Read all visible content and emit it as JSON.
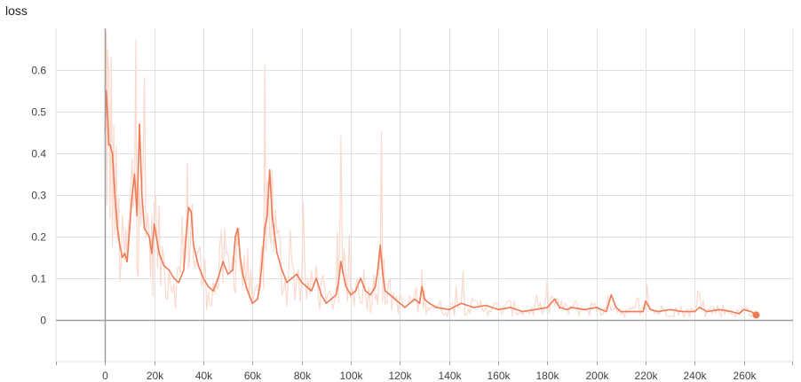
{
  "chart_data": {
    "type": "line",
    "title": "loss",
    "xlabel": "",
    "ylabel": "",
    "xlim": [
      -20000,
      280000
    ],
    "ylim": [
      -0.1,
      0.7
    ],
    "xticks": [
      0,
      20000,
      40000,
      60000,
      80000,
      100000,
      120000,
      140000,
      160000,
      180000,
      200000,
      220000,
      240000,
      260000
    ],
    "xtick_labels": [
      "0",
      "20k",
      "40k",
      "60k",
      "80k",
      "100k",
      "120k",
      "140k",
      "160k",
      "180k",
      "200k",
      "220k",
      "240k",
      "260k"
    ],
    "yticks": [
      0,
      0.1,
      0.2,
      0.3,
      0.4,
      0.5,
      0.6
    ],
    "ytick_labels": [
      "0",
      "0.1",
      "0.2",
      "0.3",
      "0.4",
      "0.5",
      "0.6"
    ],
    "grid": true,
    "colors": {
      "smoothed": "#ef7a56",
      "raw": "#fbd9cd",
      "grid": "#e0e0e0",
      "axis": "#9e9e9e"
    },
    "series": [
      {
        "role": "smoothed",
        "x": [
          0,
          500,
          1000,
          1500,
          2000,
          3000,
          4000,
          5000,
          6000,
          7000,
          8000,
          9000,
          10000,
          11000,
          12000,
          13000,
          14000,
          15000,
          16000,
          18000,
          19000,
          20000,
          22000,
          24000,
          26000,
          28000,
          30000,
          32000,
          33000,
          34000,
          35000,
          36000,
          38000,
          40000,
          42000,
          44000,
          46000,
          48000,
          50000,
          52000,
          53000,
          54000,
          55000,
          56000,
          58000,
          60000,
          62000,
          63000,
          64000,
          65000,
          66000,
          67000,
          68000,
          70000,
          72000,
          74000,
          76000,
          78000,
          80000,
          82000,
          84000,
          86000,
          88000,
          90000,
          92000,
          94000,
          95000,
          96000,
          98000,
          100000,
          102000,
          104000,
          106000,
          108000,
          110000,
          111000,
          112000,
          113000,
          114000,
          116000,
          118000,
          120000,
          122000,
          124000,
          126000,
          128000,
          129000,
          130000,
          132000,
          135000,
          140000,
          145000,
          150000,
          155000,
          160000,
          165000,
          170000,
          175000,
          180000,
          183000,
          185000,
          188000,
          190000,
          195000,
          200000,
          204000,
          206000,
          208000,
          210000,
          215000,
          219000,
          220000,
          222000,
          225000,
          230000,
          235000,
          240000,
          242000,
          245000,
          250000,
          255000,
          258000,
          260000,
          263000,
          265000
        ],
        "y": [
          0.45,
          0.55,
          0.5,
          0.42,
          0.42,
          0.4,
          0.3,
          0.22,
          0.18,
          0.15,
          0.16,
          0.14,
          0.22,
          0.3,
          0.35,
          0.25,
          0.47,
          0.3,
          0.22,
          0.2,
          0.16,
          0.23,
          0.16,
          0.13,
          0.12,
          0.1,
          0.09,
          0.12,
          0.2,
          0.27,
          0.26,
          0.18,
          0.13,
          0.1,
          0.08,
          0.07,
          0.1,
          0.14,
          0.11,
          0.12,
          0.2,
          0.22,
          0.15,
          0.11,
          0.07,
          0.04,
          0.05,
          0.08,
          0.15,
          0.22,
          0.25,
          0.36,
          0.25,
          0.16,
          0.12,
          0.09,
          0.1,
          0.11,
          0.09,
          0.08,
          0.07,
          0.1,
          0.06,
          0.04,
          0.05,
          0.06,
          0.09,
          0.14,
          0.08,
          0.06,
          0.07,
          0.1,
          0.07,
          0.06,
          0.08,
          0.12,
          0.18,
          0.11,
          0.07,
          0.06,
          0.05,
          0.04,
          0.03,
          0.04,
          0.05,
          0.04,
          0.08,
          0.05,
          0.04,
          0.03,
          0.025,
          0.04,
          0.03,
          0.035,
          0.025,
          0.03,
          0.02,
          0.025,
          0.03,
          0.05,
          0.03,
          0.025,
          0.03,
          0.025,
          0.03,
          0.02,
          0.06,
          0.03,
          0.02,
          0.02,
          0.02,
          0.045,
          0.025,
          0.02,
          0.025,
          0.02,
          0.02,
          0.03,
          0.02,
          0.025,
          0.02,
          0.015,
          0.025,
          0.02,
          0.012
        ]
      }
    ]
  }
}
